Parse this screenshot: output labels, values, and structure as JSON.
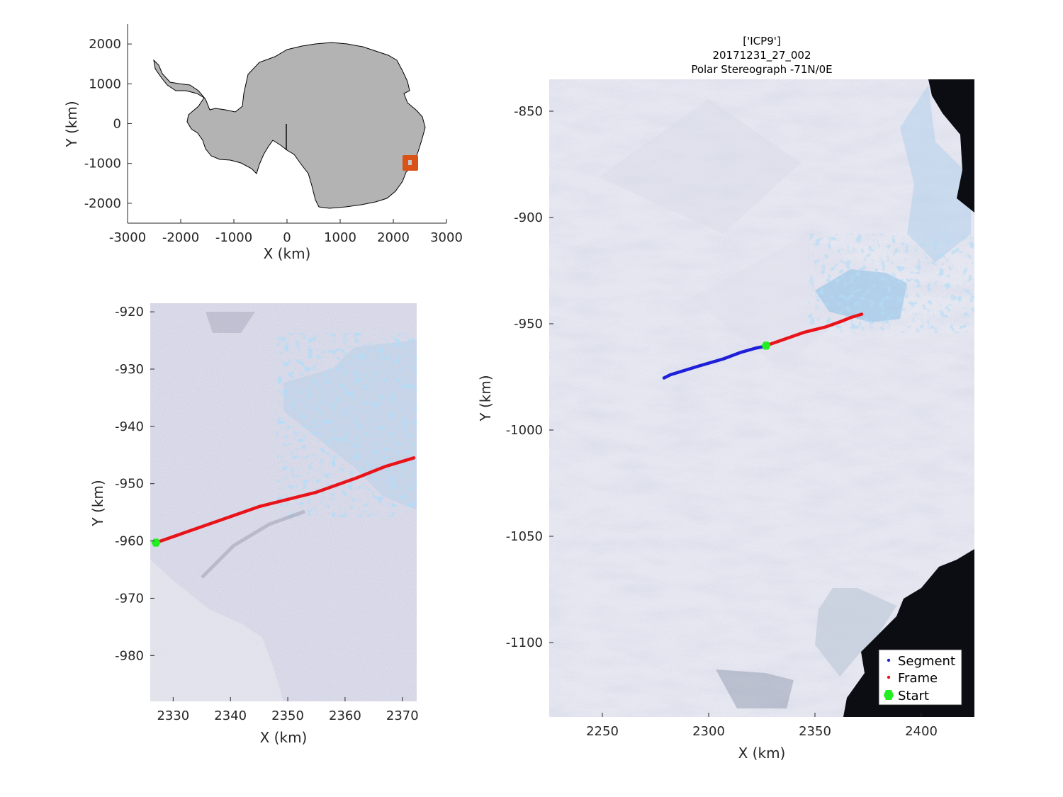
{
  "chart_data": [
    {
      "type": "map",
      "name": "overview",
      "xlabel": "X (km)",
      "ylabel": "Y (km)",
      "xlim": [
        -3000,
        3000
      ],
      "ylim": [
        -2500,
        2500
      ],
      "xticks": [
        -3000,
        -2000,
        -1000,
        0,
        1000,
        2000,
        3000
      ],
      "yticks": [
        2000,
        1000,
        0,
        -1000,
        -2000
      ],
      "land_color": "#b3b3b3",
      "highlight_box": {
        "center": [
          2330,
          -980
        ],
        "color": "#d95319"
      },
      "meridian_line": {
        "x": [
          0,
          0
        ],
        "y": [
          0,
          -650
        ]
      }
    },
    {
      "type": "map",
      "name": "frame-zoom",
      "xlabel": "X (km)",
      "ylabel": "Y (km)",
      "xlim": [
        2326,
        2372.5
      ],
      "ylim": [
        -988,
        -918.5
      ],
      "xticks": [
        2330,
        2340,
        2350,
        2360,
        2370
      ],
      "yticks": [
        -920,
        -930,
        -940,
        -950,
        -960,
        -970,
        -980
      ],
      "frame_track": {
        "color": "#e8141a",
        "x": [
          2327,
          2335,
          2345,
          2355,
          2362,
          2367,
          2372
        ],
        "y": [
          -960.3,
          -957.5,
          -954,
          -951.5,
          -949,
          -947,
          -945.5
        ]
      },
      "start_point": {
        "x": 2327,
        "y": -960.3,
        "color": "#22ee22"
      }
    },
    {
      "type": "map",
      "name": "segment-overview",
      "title_lines": [
        "['ICP9']",
        "20171231_27_002",
        "Polar Stereograph -71N/0E"
      ],
      "xlabel": "X (km)",
      "ylabel": "Y (km)",
      "xlim": [
        2225,
        2425
      ],
      "ylim": [
        -1135,
        -835
      ],
      "xticks": [
        2250,
        2300,
        2350,
        2400
      ],
      "yticks": [
        -850,
        -900,
        -950,
        -1000,
        -1050,
        -1100
      ],
      "segment_track": {
        "color": "#1f1fd9",
        "x": [
          2279,
          2282,
          2295,
          2307,
          2315,
          2322,
          2327
        ],
        "y": [
          -975.5,
          -974,
          -970,
          -966.5,
          -963.5,
          -961.5,
          -960.5
        ]
      },
      "frame_track": {
        "color": "#e8141a",
        "x": [
          2327,
          2335,
          2345,
          2355,
          2362,
          2367,
          2372
        ],
        "y": [
          -960.3,
          -957.5,
          -954,
          -951.5,
          -949,
          -947,
          -945.5
        ]
      },
      "start_point": {
        "x": 2327,
        "y": -960.3,
        "color": "#22ee22"
      },
      "legend": {
        "placement": "bottom-right",
        "entries": [
          {
            "label": "Segment",
            "color": "#1f1fd9"
          },
          {
            "label": "Frame",
            "color": "#e8141a"
          },
          {
            "label": "Start",
            "color": "#22ee22"
          }
        ]
      }
    }
  ]
}
